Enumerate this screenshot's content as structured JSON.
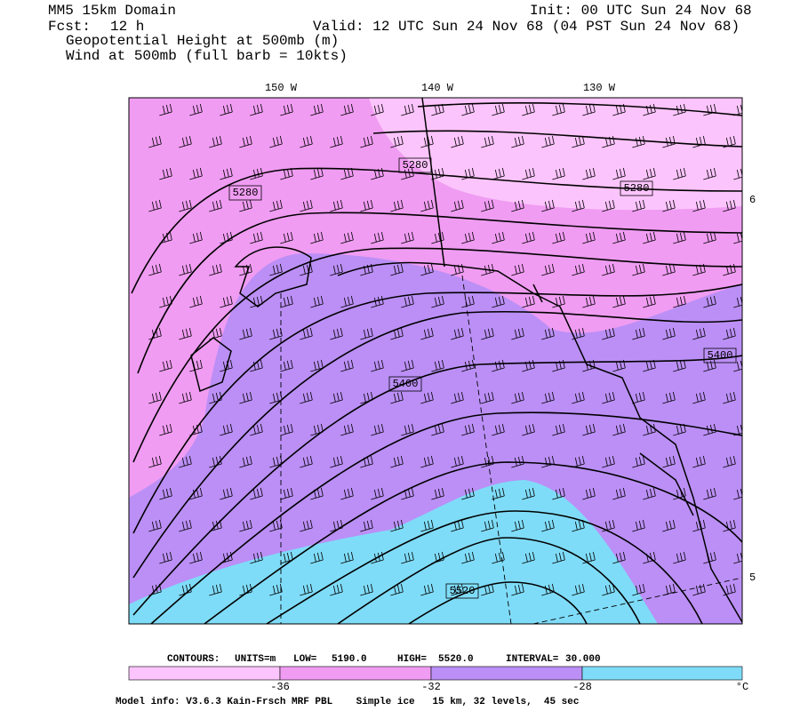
{
  "header": {
    "model": "MM5 15km Domain",
    "init": "Init: 00 UTC Sun 24 Nov 68",
    "fcst_label": "Fcst:",
    "fcst": "12 h",
    "valid": "Valid: 12 UTC Sun 24 Nov 68 (04 PST Sun 24 Nov 68)",
    "field1": "Geopotential Height at 500mb (m)",
    "field2": "Wind at 500mb (full barb = 10kts)"
  },
  "map": {
    "lon_labels": [
      "150 W",
      "140 W",
      "130 W"
    ],
    "lat_labels": [
      "6",
      "5"
    ],
    "contour_labels": [
      5280,
      5280,
      5280,
      5400,
      5400,
      5520
    ]
  },
  "footer": {
    "contours": "CONTOURS:",
    "units": "UNITS=m",
    "low": "LOW=",
    "low_value": "5190.0",
    "high": "HIGH=",
    "high_value": "5520.0",
    "interval": "INTERVAL=",
    "interval_value": "30.000"
  },
  "colorbar": {
    "labels": [
      -36,
      -32,
      -28
    ],
    "unit": "°C"
  },
  "model_info": "Model info: V3.6.3 Kain-Frsch MRF PBL    Simple ice   15 km, 32 levels,  45 sec"
}
